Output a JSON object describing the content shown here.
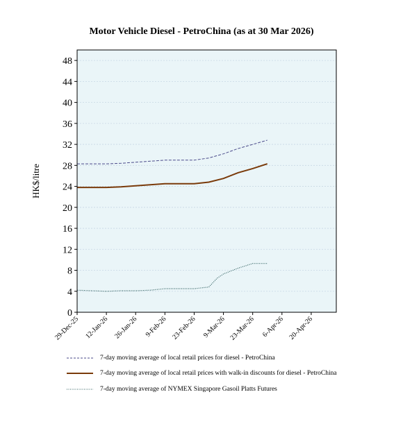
{
  "chart_data": {
    "type": "line",
    "title": "Motor Vehicle Diesel - PetroChina (as at 30 Mar 2026)",
    "ylabel": "HK$/litre",
    "xlabel": "",
    "ylim": [
      0,
      50
    ],
    "yticks": [
      0,
      4,
      8,
      12,
      16,
      20,
      24,
      28,
      32,
      36,
      40,
      44,
      48
    ],
    "xlim": [
      "2025-12-29",
      "2026-05-02"
    ],
    "xticks": [
      {
        "date": "2025-12-29",
        "label": "29-Dec-25"
      },
      {
        "date": "2026-01-12",
        "label": "12-Jan-26"
      },
      {
        "date": "2026-01-26",
        "label": "26-Jan-26"
      },
      {
        "date": "2026-02-09",
        "label": "9-Feb-26"
      },
      {
        "date": "2026-02-23",
        "label": "23-Feb-26"
      },
      {
        "date": "2026-03-09",
        "label": "9-Mar-26"
      },
      {
        "date": "2026-03-23",
        "label": "23-Mar-26"
      },
      {
        "date": "2026-04-06",
        "label": "6-Apr-26"
      },
      {
        "date": "2026-04-20",
        "label": "20-Apr-26"
      }
    ],
    "background": "#eaf5f8",
    "grid": true,
    "legend_position": "bottom",
    "series": [
      {
        "name": "7-day moving average of local retail prices for diesel - PetroChina",
        "color": "#4a4a8a",
        "style": "dashed",
        "points": [
          [
            "2025-12-29",
            28.3
          ],
          [
            "2026-01-05",
            28.3
          ],
          [
            "2026-01-12",
            28.3
          ],
          [
            "2026-01-19",
            28.4
          ],
          [
            "2026-01-26",
            28.6
          ],
          [
            "2026-02-02",
            28.8
          ],
          [
            "2026-02-09",
            29.0
          ],
          [
            "2026-02-16",
            29.0
          ],
          [
            "2026-02-23",
            29.0
          ],
          [
            "2026-03-02",
            29.4
          ],
          [
            "2026-03-09",
            30.2
          ],
          [
            "2026-03-16",
            31.2
          ],
          [
            "2026-03-23",
            32.0
          ],
          [
            "2026-03-30",
            32.8
          ]
        ]
      },
      {
        "name": "7-day moving average of local retail prices with walk-in discounts for diesel - PetroChina",
        "color": "#7a3a0a",
        "style": "solid",
        "points": [
          [
            "2025-12-29",
            23.8
          ],
          [
            "2026-01-05",
            23.8
          ],
          [
            "2026-01-12",
            23.8
          ],
          [
            "2026-01-19",
            23.9
          ],
          [
            "2026-01-26",
            24.1
          ],
          [
            "2026-02-02",
            24.3
          ],
          [
            "2026-02-09",
            24.5
          ],
          [
            "2026-02-16",
            24.5
          ],
          [
            "2026-02-23",
            24.5
          ],
          [
            "2026-03-02",
            24.8
          ],
          [
            "2026-03-09",
            25.5
          ],
          [
            "2026-03-16",
            26.6
          ],
          [
            "2026-03-23",
            27.4
          ],
          [
            "2026-03-30",
            28.3
          ]
        ]
      },
      {
        "name": "7-day moving average of NYMEX Singapore Gasoil Platts Futures",
        "color": "#2f5f5f",
        "style": "dotted",
        "points": [
          [
            "2025-12-29",
            4.2
          ],
          [
            "2026-01-05",
            4.1
          ],
          [
            "2026-01-12",
            4.0
          ],
          [
            "2026-01-19",
            4.1
          ],
          [
            "2026-01-26",
            4.1
          ],
          [
            "2026-02-02",
            4.2
          ],
          [
            "2026-02-09",
            4.5
          ],
          [
            "2026-02-16",
            4.5
          ],
          [
            "2026-02-23",
            4.5
          ],
          [
            "2026-03-02",
            4.8
          ],
          [
            "2026-03-06",
            6.5
          ],
          [
            "2026-03-09",
            7.3
          ],
          [
            "2026-03-16",
            8.4
          ],
          [
            "2026-03-23",
            9.3
          ],
          [
            "2026-03-30",
            9.3
          ]
        ]
      }
    ]
  }
}
